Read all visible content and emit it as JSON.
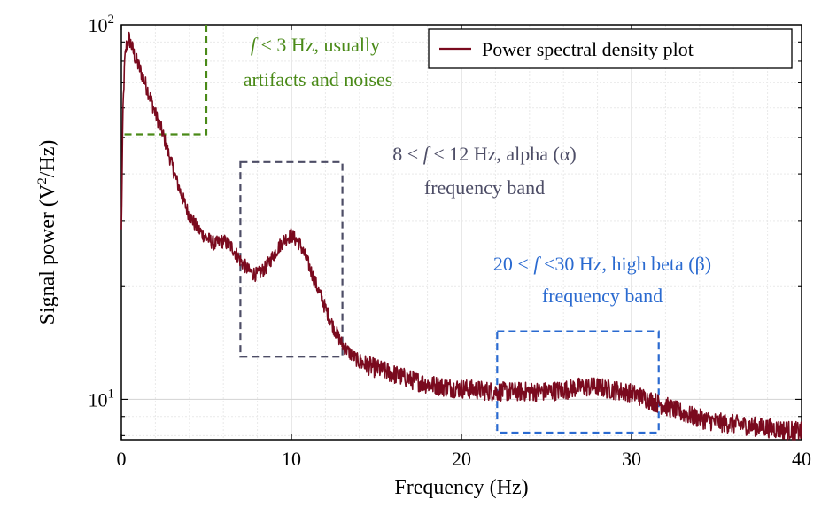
{
  "chart_data": {
    "type": "line",
    "xlabel": "Frequency (Hz)",
    "ylabel_prefix": "Signal power (V",
    "ylabel_sup": "2",
    "ylabel_suffix": "/Hz)",
    "xlim": [
      0,
      40
    ],
    "ylim": [
      7.8,
      100
    ],
    "yscale": "log",
    "grid": true,
    "x_ticks": [
      {
        "value": 0,
        "label": "0"
      },
      {
        "value": 10,
        "label": "10"
      },
      {
        "value": 20,
        "label": "20"
      },
      {
        "value": 30,
        "label": "30"
      },
      {
        "value": 40,
        "label": "40"
      }
    ],
    "y_ticks": [
      {
        "value": 10,
        "base": "10",
        "exp": "1"
      },
      {
        "value": 100,
        "base": "10",
        "exp": "2"
      }
    ],
    "legend": {
      "position": "top-right",
      "label": "Power spectral density plot"
    },
    "series": [
      {
        "name": "Power spectral density plot",
        "color": "#7a0a1e",
        "x": [
          0,
          0.1,
          0.2,
          0.3,
          0.45,
          0.6,
          0.8,
          1.0,
          1.3,
          1.6,
          2.0,
          2.4,
          2.8,
          3.2,
          3.6,
          4.0,
          4.5,
          5.0,
          5.5,
          6.0,
          6.5,
          7.0,
          7.5,
          8.0,
          8.5,
          9.0,
          9.5,
          10.0,
          10.5,
          11.0,
          11.5,
          12.0,
          12.5,
          13.0,
          13.5,
          14.0,
          15.0,
          16.0,
          17.0,
          18.0,
          19.0,
          20.0,
          21.0,
          22.0,
          23.0,
          24.0,
          25.0,
          26.0,
          27.0,
          28.0,
          29.0,
          30.0,
          31.0,
          32.0,
          33.0,
          34.0,
          35.0,
          36.0,
          37.0,
          38.0,
          39.0,
          40.0
        ],
        "values": [
          28,
          60,
          80,
          88,
          92,
          88,
          82,
          78,
          72,
          66,
          58,
          52,
          45,
          39,
          34.5,
          31,
          28.5,
          27,
          26,
          26.5,
          25.5,
          23.5,
          22,
          21.5,
          22.5,
          24.5,
          26.5,
          27.5,
          26,
          23,
          20,
          17.5,
          15.5,
          14,
          13.2,
          12.6,
          12.1,
          11.7,
          11.3,
          11.0,
          10.8,
          10.7,
          10.6,
          10.5,
          10.5,
          10.5,
          10.5,
          10.6,
          10.8,
          10.8,
          10.6,
          10.4,
          10.0,
          9.6,
          9.2,
          8.9,
          8.7,
          8.6,
          8.5,
          8.4,
          8.3,
          8.2
        ]
      }
    ],
    "annotations": [
      {
        "id": "noise",
        "line1": "f < 3 Hz, usually",
        "line2": "artifacts and noises",
        "color": "#4a8a18",
        "x": [
          0,
          5
        ],
        "y": [
          51,
          100
        ]
      },
      {
        "id": "alpha",
        "line1": "8 < f < 12 Hz, alpha (α)",
        "line2": "frequency band",
        "color": "#4d4d66",
        "x": [
          7,
          13
        ],
        "y": [
          13,
          43
        ]
      },
      {
        "id": "beta",
        "line1": "20 < f <30 Hz, high beta (β)",
        "line2": "frequency band",
        "color": "#2a6ad0",
        "x": [
          22.1,
          31.6
        ],
        "y": [
          8.15,
          15.2
        ]
      }
    ]
  }
}
